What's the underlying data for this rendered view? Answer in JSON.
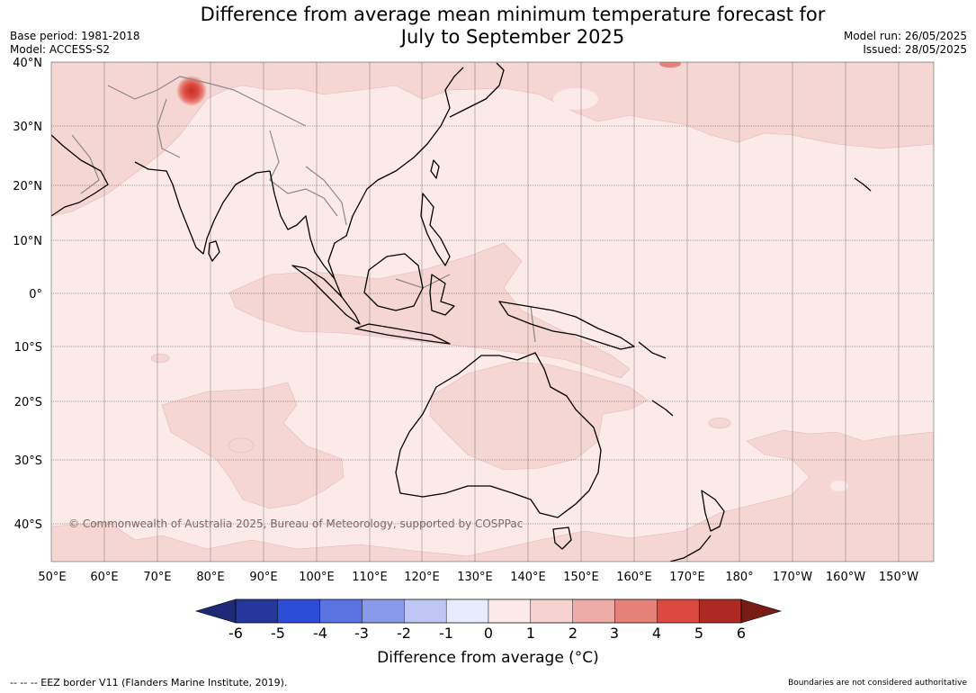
{
  "title": "Difference from average mean minimum temperature forecast for July to September 2025",
  "title_line1": "Difference from average mean minimum temperature forecast for",
  "title_line2": "July to September 2025",
  "meta": {
    "base_period": "Base period: 1981-2018",
    "model": "Model: ACCESS-S2",
    "model_run": "Model run: 26/05/2025",
    "issued": "Issued: 28/05/2025"
  },
  "latitude_labels": [
    "40°N",
    "30°N",
    "20°N",
    "10°N",
    "0°",
    "10°S",
    "20°S",
    "30°S",
    "40°S"
  ],
  "longitude_labels": [
    "50°E",
    "60°E",
    "70°E",
    "80°E",
    "90°E",
    "100°E",
    "110°E",
    "120°E",
    "130°E",
    "140°E",
    "150°E",
    "160°E",
    "170°E",
    "180°",
    "170°W",
    "160°W",
    "150°W"
  ],
  "copyright": "© Commonwealth of Australia 2025, Bureau of Meteorology, supported by COSPPac",
  "colorbar": {
    "ticks": [
      "-6",
      "-5",
      "-4",
      "-3",
      "-2",
      "-1",
      "0",
      "1",
      "2",
      "3",
      "4",
      "5",
      "6"
    ],
    "label": "Difference from average (°C)",
    "colors": [
      "#26379c",
      "#2e4dd6",
      "#5b73e0",
      "#8a9aea",
      "#bfc6f3",
      "#e8ebfb",
      "#fbeae8",
      "#f6d3d0",
      "#eeaca6",
      "#e6817a",
      "#db4a3e",
      "#ad2a22"
    ],
    "under_color": "#1e2a78",
    "over_color": "#7a1c16"
  },
  "footer": {
    "left": "-- -- -- EEZ border V11 (Flanders Marine Institute, 2019).",
    "right": "Boundaries are not considered authoritative"
  },
  "map_colors": {
    "ocean_base": "#fbeae8",
    "anomaly_1_2": "#f5d6d3",
    "hotspot": "#db4a3e"
  }
}
